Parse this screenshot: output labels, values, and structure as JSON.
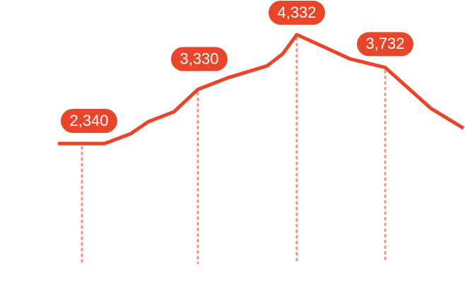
{
  "chart_data": {
    "type": "line",
    "title": "",
    "xlabel": "",
    "ylabel": "",
    "grid": false,
    "legend": "none",
    "colors": {
      "line": "#e8452a",
      "label_bg": "#e8452a",
      "label_text": "#ffffff",
      "drop_line": "#f1917f"
    },
    "series": [
      {
        "values": [
          2340,
          2340,
          2340,
          2520,
          2740,
          2920,
          3330,
          3540,
          3760,
          3980,
          4332,
          4110,
          3890,
          3732,
          2980,
          2620
        ]
      }
    ],
    "labeled_points": [
      {
        "index": 1,
        "label": "2,340"
      },
      {
        "index": 6,
        "label": "3,330"
      },
      {
        "index": 10,
        "label": "4,332"
      },
      {
        "index": 13,
        "label": "3,732"
      }
    ]
  }
}
